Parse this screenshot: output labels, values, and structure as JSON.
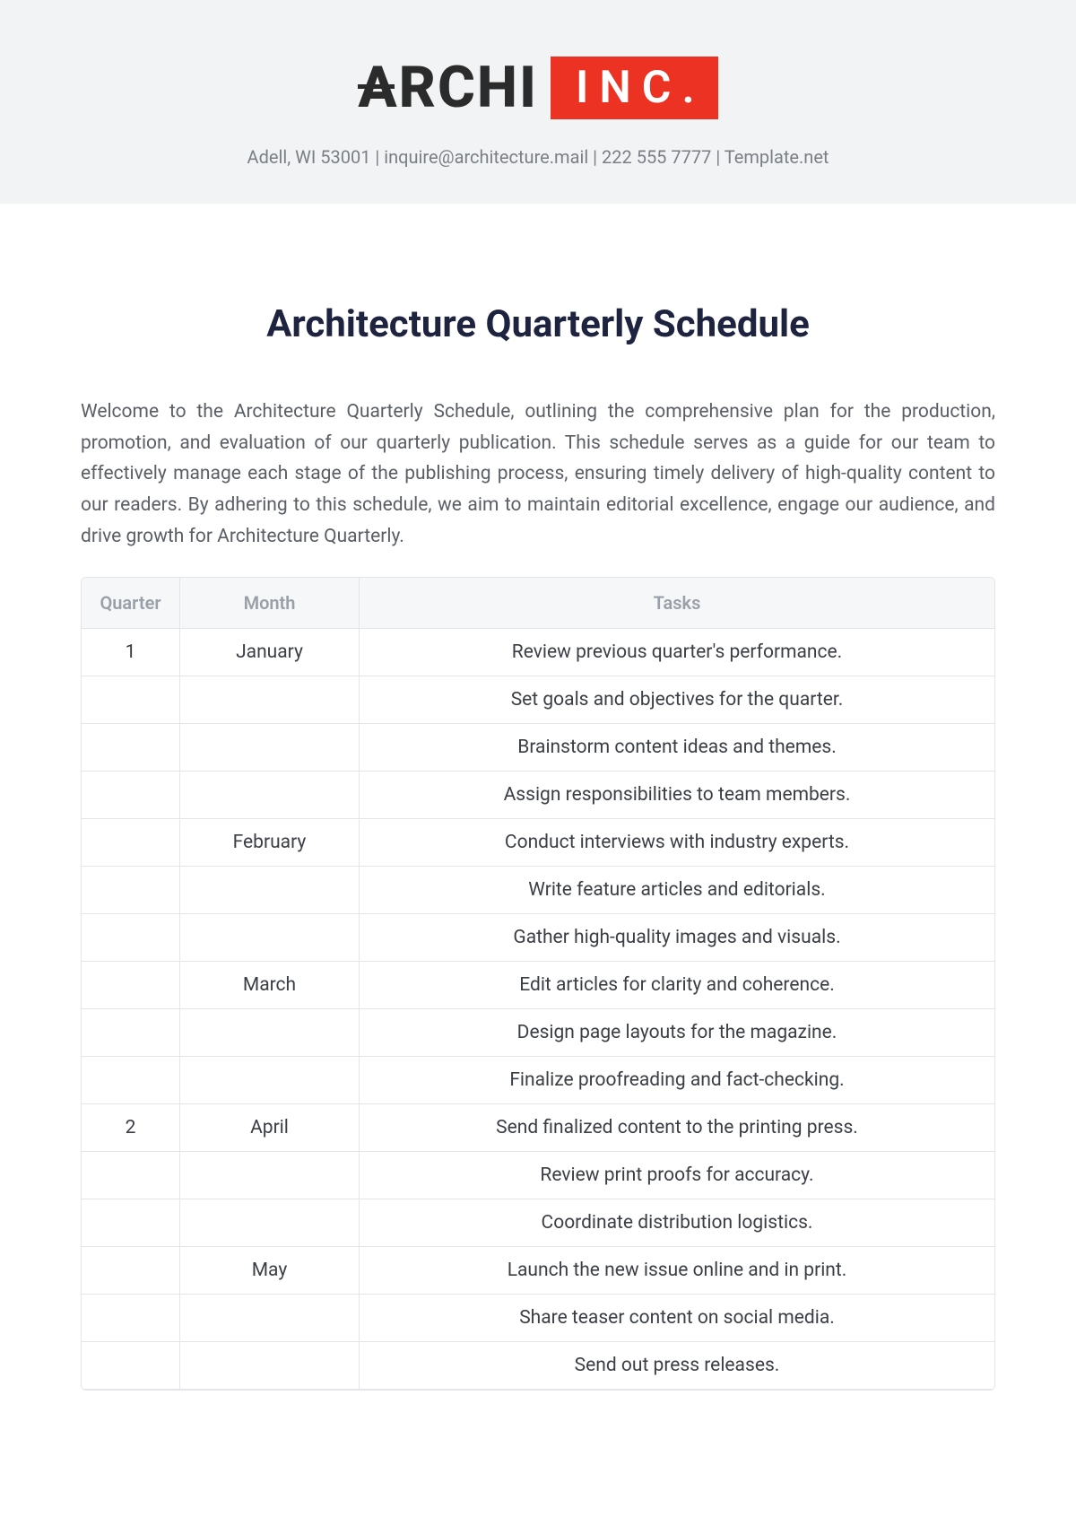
{
  "logo": {
    "part1": "ARCHI",
    "part2": "INC."
  },
  "contact": {
    "address": "Adell, WI 53001",
    "email": "inquire@architecture.mail",
    "phone": "222 555 7777",
    "site": "Template.net"
  },
  "title": "Architecture Quarterly Schedule",
  "intro": "Welcome to the Architecture Quarterly Schedule, outlining the comprehensive plan for the production, promotion, and evaluation of our quarterly publication. This schedule serves as a guide for our team to effectively manage each stage of the publishing process, ensuring timely delivery of high-quality content to our readers. By adhering to this schedule, we aim to maintain editorial excellence, engage our audience, and drive growth for Architecture Quarterly.",
  "table": {
    "columns": [
      "Quarter",
      "Month",
      "Tasks"
    ],
    "rows": [
      {
        "quarter": "1",
        "month": "January",
        "task": "Review previous quarter's performance."
      },
      {
        "quarter": "",
        "month": "",
        "task": "Set goals and objectives for the quarter."
      },
      {
        "quarter": "",
        "month": "",
        "task": "Brainstorm content ideas and themes."
      },
      {
        "quarter": "",
        "month": "",
        "task": "Assign responsibilities to team members."
      },
      {
        "quarter": "",
        "month": "February",
        "task": "Conduct interviews with industry experts."
      },
      {
        "quarter": "",
        "month": "",
        "task": "Write feature articles and editorials."
      },
      {
        "quarter": "",
        "month": "",
        "task": "Gather high-quality images and visuals."
      },
      {
        "quarter": "",
        "month": "March",
        "task": "Edit articles for clarity and coherence."
      },
      {
        "quarter": "",
        "month": "",
        "task": "Design page layouts for the magazine."
      },
      {
        "quarter": "",
        "month": "",
        "task": "Finalize proofreading and fact-checking."
      },
      {
        "quarter": "2",
        "month": "April",
        "task": "Send finalized content to the printing press."
      },
      {
        "quarter": "",
        "month": "",
        "task": "Review print proofs for accuracy."
      },
      {
        "quarter": "",
        "month": "",
        "task": "Coordinate distribution logistics."
      },
      {
        "quarter": "",
        "month": "May",
        "task": "Launch the new issue online and in print."
      },
      {
        "quarter": "",
        "month": "",
        "task": "Share teaser content on social media."
      },
      {
        "quarter": "",
        "month": "",
        "task": "Send out press releases."
      }
    ]
  },
  "colors": {
    "header_bg": "#f2f3f4",
    "logo_text": "#2b2b2b",
    "inc_bg": "#ec3323",
    "inc_text": "#ffffff",
    "contact_text": "#7a7f85",
    "title_text": "#1e2340",
    "body_text": "#5a5f66",
    "table_border": "#e3e5e8",
    "table_header_bg": "#f6f7f9",
    "table_header_text": "#9aa0a8",
    "cell_text": "#3a3f45"
  }
}
